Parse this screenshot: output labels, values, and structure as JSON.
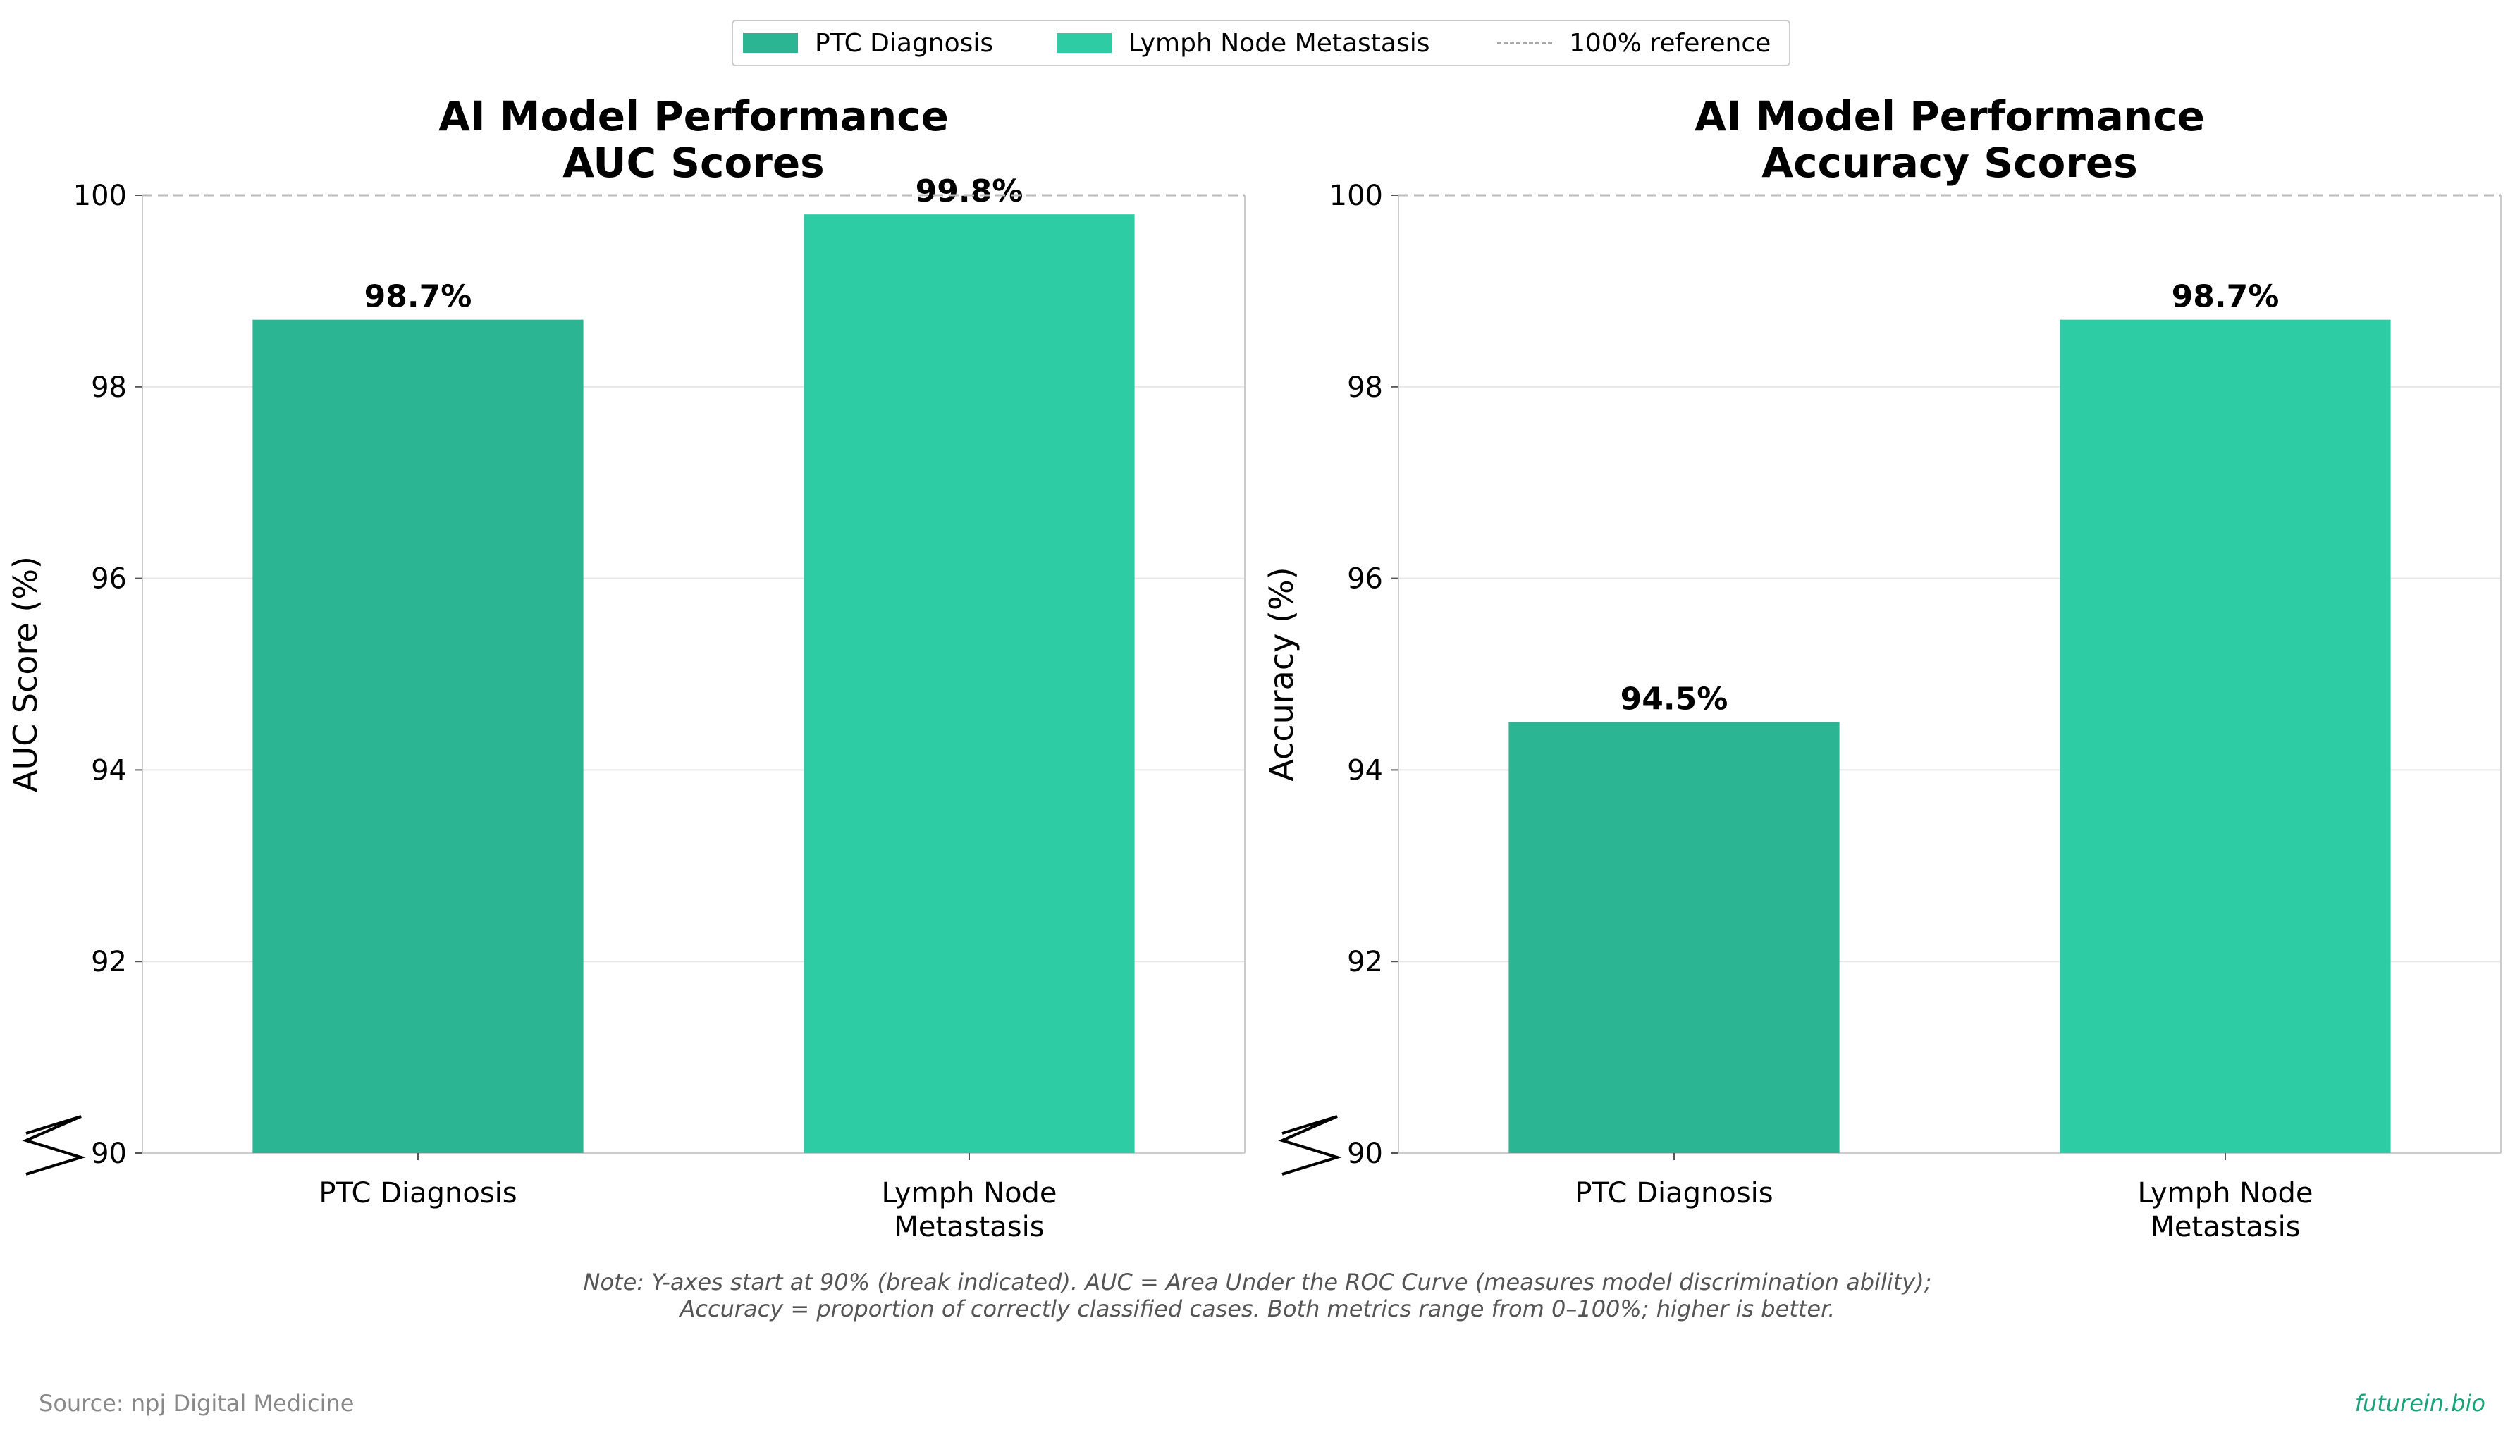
{
  "legend": {
    "items": [
      {
        "label": "PTC Diagnosis",
        "color": "#2bb592",
        "kind": "bar"
      },
      {
        "label": "Lymph Node Metastasis",
        "color": "#2dcca5",
        "kind": "bar"
      },
      {
        "label": "100% reference",
        "color": "#aaaaaa",
        "kind": "dashed-line"
      }
    ]
  },
  "note": {
    "line1": "Note: Y-axes start at 90% (break indicated). AUC = Area Under the ROC Curve (measures model discrimination ability);",
    "line2": "Accuracy = proportion of correctly classified cases. Both metrics range from 0–100%; higher is better."
  },
  "source": "Source: npj Digital Medicine",
  "brand": "futurein.bio",
  "chart_data": [
    {
      "type": "bar",
      "title": [
        "AI Model Performance",
        "AUC Scores"
      ],
      "ylabel": "AUC Score (%)",
      "xlabel": "",
      "categories": [
        [
          "PTC Diagnosis"
        ],
        [
          "Lymph Node",
          "Metastasis"
        ]
      ],
      "values": [
        98.7,
        99.8
      ],
      "value_labels": [
        "98.7%",
        "99.8%"
      ],
      "colors": [
        "#2bb592",
        "#2dcca5"
      ],
      "ylim": [
        90,
        100
      ],
      "yticks": [
        90,
        92,
        94,
        96,
        98,
        100
      ],
      "reference_line": 100,
      "axis_break": true,
      "grid": true
    },
    {
      "type": "bar",
      "title": [
        "AI Model Performance",
        "Accuracy Scores"
      ],
      "ylabel": "Accuracy (%)",
      "xlabel": "",
      "categories": [
        [
          "PTC Diagnosis"
        ],
        [
          "Lymph Node",
          "Metastasis"
        ]
      ],
      "values": [
        94.5,
        98.7
      ],
      "value_labels": [
        "94.5%",
        "98.7%"
      ],
      "colors": [
        "#2bb592",
        "#2dcca5"
      ],
      "ylim": [
        90,
        100
      ],
      "yticks": [
        90,
        92,
        94,
        96,
        98,
        100
      ],
      "reference_line": 100,
      "axis_break": true,
      "grid": true
    }
  ]
}
